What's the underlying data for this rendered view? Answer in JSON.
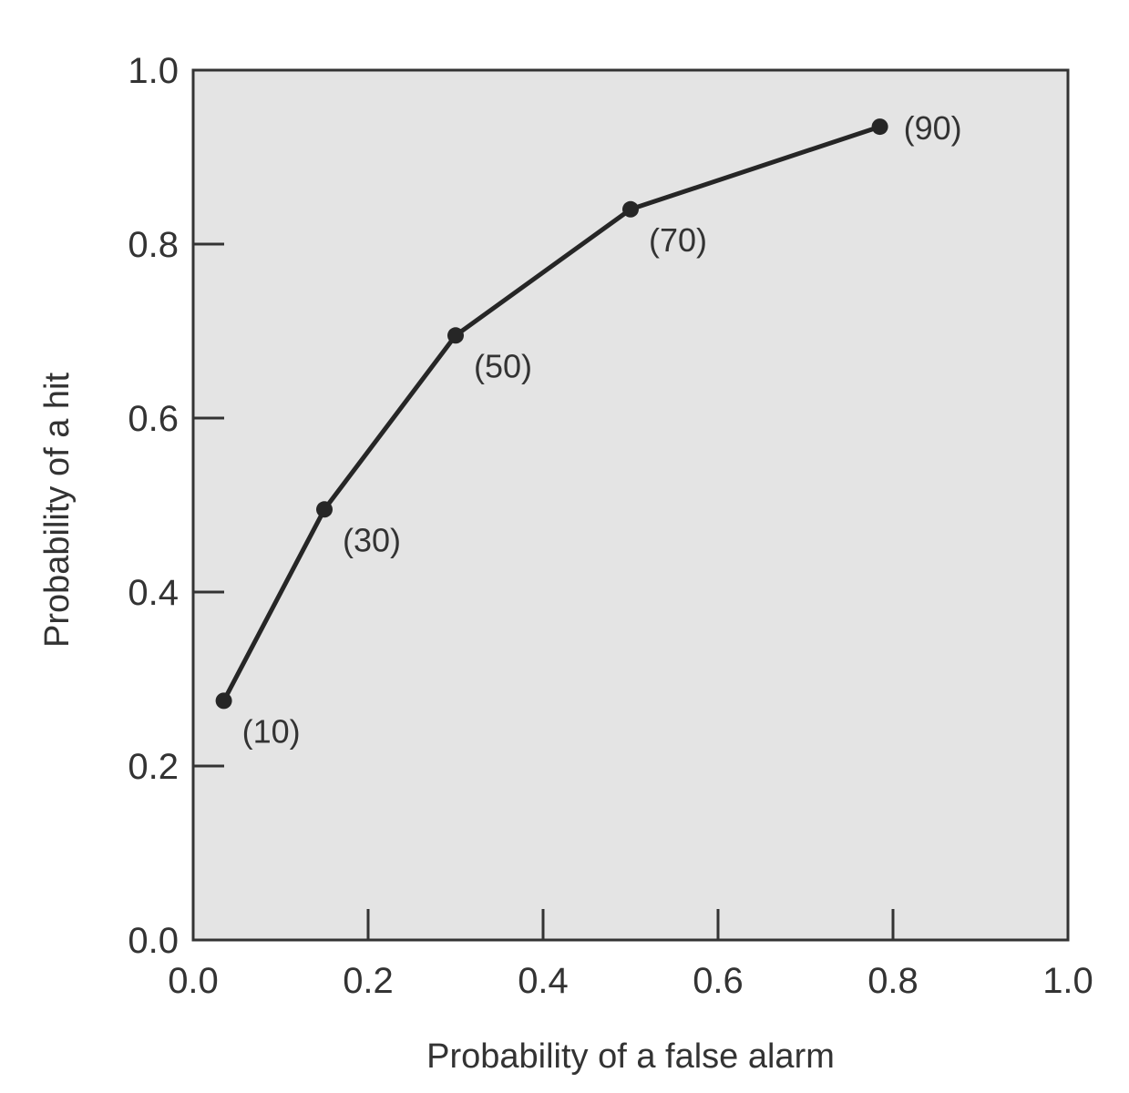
{
  "chart_data": {
    "type": "line",
    "title": "",
    "xlabel": "Probability of a false alarm",
    "ylabel": "Probability of a hit",
    "xlim": [
      0,
      1
    ],
    "ylim": [
      0,
      1
    ],
    "x_ticks": [
      "0.0",
      "0.2",
      "0.4",
      "0.6",
      "0.8",
      "1.0"
    ],
    "y_ticks": [
      "0.0",
      "0.2",
      "0.4",
      "0.6",
      "0.8",
      "1.0"
    ],
    "grid": false,
    "legend": "none",
    "background": "#e4e4e4",
    "line_color": "#262626",
    "series": [
      {
        "points": [
          {
            "x": 0.035,
            "y": 0.275,
            "label": "(10)"
          },
          {
            "x": 0.15,
            "y": 0.495,
            "label": "(30)"
          },
          {
            "x": 0.3,
            "y": 0.695,
            "label": "(50)"
          },
          {
            "x": 0.5,
            "y": 0.84,
            "label": "(70)"
          },
          {
            "x": 0.785,
            "y": 0.935,
            "label": "(90)"
          }
        ]
      }
    ]
  }
}
